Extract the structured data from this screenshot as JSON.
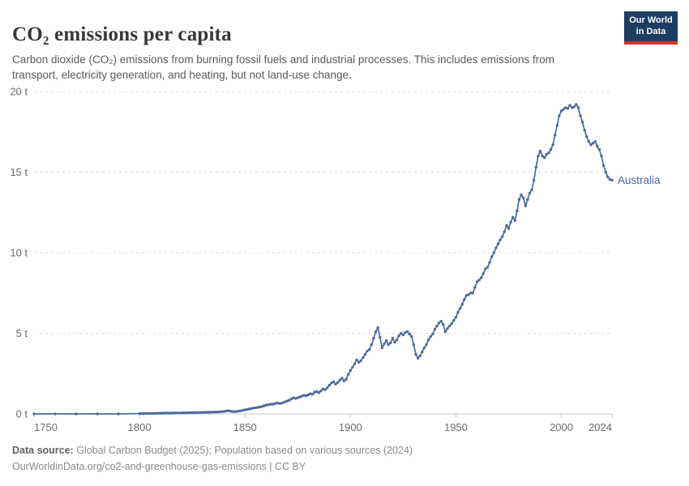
{
  "header": {
    "title": "CO₂ emissions per capita",
    "subtitle": "Carbon dioxide (CO₂) emissions from burning fossil fuels and industrial processes. This includes emissions from transport, electricity generation, and heating, but not land-use change.",
    "logo": {
      "line1": "Our World",
      "line2": "in Data"
    }
  },
  "footer": {
    "datasource_label": "Data source:",
    "datasource_text": " Global Carbon Budget (2025); Population based on various sources (2024)",
    "note_text": "OurWorldinData.org/co2-and-greenhouse-gas-emissions | CC BY"
  },
  "colors": {
    "series_blue": "#4c6a9e",
    "logo_navy": "#1d3d63",
    "logo_red": "#dc352c",
    "grid_gray": "#dcdcdc",
    "axis_gray": "#c4c4c4",
    "tick_text": "#6b6b6b"
  },
  "chart_data": {
    "type": "line",
    "title": "CO₂ emissions per capita",
    "unit": "t",
    "xlabel": "",
    "ylabel": "",
    "xlim": [
      1750,
      2024
    ],
    "ylim": [
      0,
      20
    ],
    "grid": true,
    "legend_position": "end-of-line",
    "x_ticks": [
      {
        "year": 1750,
        "label": "1750",
        "anchor": "start"
      },
      {
        "year": 1800,
        "label": "1800",
        "anchor": "middle"
      },
      {
        "year": 1850,
        "label": "1850",
        "anchor": "middle"
      },
      {
        "year": 1900,
        "label": "1900",
        "anchor": "middle"
      },
      {
        "year": 1950,
        "label": "1950",
        "anchor": "middle"
      },
      {
        "year": 2000,
        "label": "2000",
        "anchor": "middle"
      },
      {
        "year": 2024,
        "label": "2024",
        "anchor": "end"
      }
    ],
    "y_ticks": [
      {
        "value": 0,
        "label": "0 t"
      },
      {
        "value": 5,
        "label": "5 t"
      },
      {
        "value": 10,
        "label": "10 t"
      },
      {
        "value": 15,
        "label": "15 t"
      },
      {
        "value": 20,
        "label": "20 t"
      }
    ],
    "series": [
      {
        "name": "Australia",
        "color": "#4c6a9e",
        "points": [
          [
            1750,
            0
          ],
          [
            1760,
            0
          ],
          [
            1770,
            0
          ],
          [
            1780,
            0
          ],
          [
            1790,
            0
          ],
          [
            1800,
            0.02
          ],
          [
            1801,
            0.02
          ],
          [
            1802,
            0.02
          ],
          [
            1803,
            0.03
          ],
          [
            1804,
            0.03
          ],
          [
            1805,
            0.03
          ],
          [
            1806,
            0.03
          ],
          [
            1807,
            0.03
          ],
          [
            1808,
            0.04
          ],
          [
            1809,
            0.04
          ],
          [
            1810,
            0.04
          ],
          [
            1811,
            0.04
          ],
          [
            1812,
            0.05
          ],
          [
            1813,
            0.05
          ],
          [
            1814,
            0.05
          ],
          [
            1815,
            0.05
          ],
          [
            1816,
            0.05
          ],
          [
            1817,
            0.06
          ],
          [
            1818,
            0.06
          ],
          [
            1819,
            0.06
          ],
          [
            1820,
            0.06
          ],
          [
            1821,
            0.07
          ],
          [
            1822,
            0.07
          ],
          [
            1823,
            0.07
          ],
          [
            1824,
            0.08
          ],
          [
            1825,
            0.08
          ],
          [
            1826,
            0.08
          ],
          [
            1827,
            0.08
          ],
          [
            1828,
            0.09
          ],
          [
            1829,
            0.09
          ],
          [
            1830,
            0.09
          ],
          [
            1831,
            0.1
          ],
          [
            1832,
            0.1
          ],
          [
            1833,
            0.1
          ],
          [
            1834,
            0.11
          ],
          [
            1835,
            0.11
          ],
          [
            1836,
            0.12
          ],
          [
            1837,
            0.12
          ],
          [
            1838,
            0.13
          ],
          [
            1839,
            0.14
          ],
          [
            1840,
            0.15
          ],
          [
            1841,
            0.18
          ],
          [
            1842,
            0.2
          ],
          [
            1843,
            0.17
          ],
          [
            1844,
            0.15
          ],
          [
            1845,
            0.14
          ],
          [
            1846,
            0.15
          ],
          [
            1847,
            0.17
          ],
          [
            1848,
            0.19
          ],
          [
            1849,
            0.22
          ],
          [
            1850,
            0.25
          ],
          [
            1851,
            0.28
          ],
          [
            1852,
            0.3
          ],
          [
            1853,
            0.33
          ],
          [
            1854,
            0.36
          ],
          [
            1855,
            0.38
          ],
          [
            1856,
            0.4
          ],
          [
            1857,
            0.43
          ],
          [
            1858,
            0.45
          ],
          [
            1859,
            0.5
          ],
          [
            1860,
            0.55
          ],
          [
            1861,
            0.57
          ],
          [
            1862,
            0.6
          ],
          [
            1863,
            0.6
          ],
          [
            1864,
            0.63
          ],
          [
            1865,
            0.68
          ],
          [
            1866,
            0.66
          ],
          [
            1867,
            0.65
          ],
          [
            1868,
            0.7
          ],
          [
            1869,
            0.75
          ],
          [
            1870,
            0.8
          ],
          [
            1871,
            0.85
          ],
          [
            1872,
            0.93
          ],
          [
            1873,
            1.0
          ],
          [
            1874,
            0.96
          ],
          [
            1875,
            1.0
          ],
          [
            1876,
            1.05
          ],
          [
            1877,
            1.1
          ],
          [
            1878,
            1.15
          ],
          [
            1879,
            1.13
          ],
          [
            1880,
            1.18
          ],
          [
            1881,
            1.25
          ],
          [
            1882,
            1.22
          ],
          [
            1883,
            1.35
          ],
          [
            1884,
            1.38
          ],
          [
            1885,
            1.32
          ],
          [
            1886,
            1.42
          ],
          [
            1887,
            1.55
          ],
          [
            1888,
            1.5
          ],
          [
            1889,
            1.62
          ],
          [
            1890,
            1.78
          ],
          [
            1891,
            1.92
          ],
          [
            1892,
            2.0
          ],
          [
            1893,
            1.85
          ],
          [
            1894,
            1.95
          ],
          [
            1895,
            2.1
          ],
          [
            1896,
            2.22
          ],
          [
            1897,
            2.05
          ],
          [
            1898,
            2.15
          ],
          [
            1899,
            2.45
          ],
          [
            1900,
            2.7
          ],
          [
            1901,
            2.9
          ],
          [
            1902,
            3.1
          ],
          [
            1903,
            3.35
          ],
          [
            1904,
            3.2
          ],
          [
            1905,
            3.3
          ],
          [
            1906,
            3.5
          ],
          [
            1907,
            3.7
          ],
          [
            1908,
            3.9
          ],
          [
            1909,
            4.0
          ],
          [
            1910,
            4.3
          ],
          [
            1911,
            4.7
          ],
          [
            1912,
            5.1
          ],
          [
            1913,
            5.35
          ],
          [
            1914,
            4.75
          ],
          [
            1915,
            4.1
          ],
          [
            1916,
            4.35
          ],
          [
            1917,
            4.55
          ],
          [
            1918,
            4.3
          ],
          [
            1919,
            4.4
          ],
          [
            1920,
            4.7
          ],
          [
            1921,
            4.45
          ],
          [
            1922,
            4.6
          ],
          [
            1923,
            4.85
          ],
          [
            1924,
            5.0
          ],
          [
            1925,
            4.9
          ],
          [
            1926,
            5.05
          ],
          [
            1927,
            5.1
          ],
          [
            1928,
            4.95
          ],
          [
            1929,
            4.8
          ],
          [
            1930,
            4.3
          ],
          [
            1931,
            3.7
          ],
          [
            1932,
            3.45
          ],
          [
            1933,
            3.6
          ],
          [
            1934,
            3.85
          ],
          [
            1935,
            4.1
          ],
          [
            1936,
            4.3
          ],
          [
            1937,
            4.6
          ],
          [
            1938,
            4.8
          ],
          [
            1939,
            4.95
          ],
          [
            1940,
            5.25
          ],
          [
            1941,
            5.45
          ],
          [
            1942,
            5.65
          ],
          [
            1943,
            5.75
          ],
          [
            1944,
            5.55
          ],
          [
            1945,
            5.1
          ],
          [
            1946,
            5.3
          ],
          [
            1947,
            5.45
          ],
          [
            1948,
            5.6
          ],
          [
            1949,
            5.8
          ],
          [
            1950,
            6.0
          ],
          [
            1951,
            6.3
          ],
          [
            1952,
            6.55
          ],
          [
            1953,
            6.8
          ],
          [
            1954,
            7.1
          ],
          [
            1955,
            7.35
          ],
          [
            1956,
            7.4
          ],
          [
            1957,
            7.5
          ],
          [
            1958,
            7.5
          ],
          [
            1959,
            7.85
          ],
          [
            1960,
            8.2
          ],
          [
            1961,
            8.3
          ],
          [
            1962,
            8.45
          ],
          [
            1963,
            8.7
          ],
          [
            1964,
            9.0
          ],
          [
            1965,
            9.1
          ],
          [
            1966,
            9.4
          ],
          [
            1967,
            9.75
          ],
          [
            1968,
            10.0
          ],
          [
            1969,
            10.3
          ],
          [
            1970,
            10.55
          ],
          [
            1971,
            10.8
          ],
          [
            1972,
            11.0
          ],
          [
            1973,
            11.3
          ],
          [
            1974,
            11.7
          ],
          [
            1975,
            11.5
          ],
          [
            1976,
            11.9
          ],
          [
            1977,
            12.2
          ],
          [
            1978,
            12.0
          ],
          [
            1979,
            12.6
          ],
          [
            1980,
            13.3
          ],
          [
            1981,
            13.6
          ],
          [
            1982,
            13.4
          ],
          [
            1983,
            12.9
          ],
          [
            1984,
            13.3
          ],
          [
            1985,
            13.7
          ],
          [
            1986,
            13.9
          ],
          [
            1987,
            14.5
          ],
          [
            1988,
            15.3
          ],
          [
            1989,
            16.0
          ],
          [
            1990,
            16.3
          ],
          [
            1991,
            16.0
          ],
          [
            1992,
            15.9
          ],
          [
            1993,
            16.1
          ],
          [
            1994,
            16.2
          ],
          [
            1995,
            16.4
          ],
          [
            1996,
            16.7
          ],
          [
            1997,
            17.3
          ],
          [
            1998,
            17.9
          ],
          [
            1999,
            18.5
          ],
          [
            2000,
            18.8
          ],
          [
            2001,
            18.9
          ],
          [
            2002,
            19.0
          ],
          [
            2003,
            18.95
          ],
          [
            2004,
            19.15
          ],
          [
            2005,
            19.0
          ],
          [
            2006,
            19.05
          ],
          [
            2007,
            19.2
          ],
          [
            2008,
            19.0
          ],
          [
            2009,
            18.5
          ],
          [
            2010,
            18.1
          ],
          [
            2011,
            17.6
          ],
          [
            2012,
            17.2
          ],
          [
            2013,
            16.9
          ],
          [
            2014,
            16.7
          ],
          [
            2015,
            16.8
          ],
          [
            2016,
            16.9
          ],
          [
            2017,
            16.6
          ],
          [
            2018,
            16.4
          ],
          [
            2019,
            16.0
          ],
          [
            2020,
            15.4
          ],
          [
            2021,
            15.0
          ],
          [
            2022,
            14.7
          ],
          [
            2023,
            14.55
          ],
          [
            2024,
            14.5
          ]
        ]
      }
    ]
  }
}
